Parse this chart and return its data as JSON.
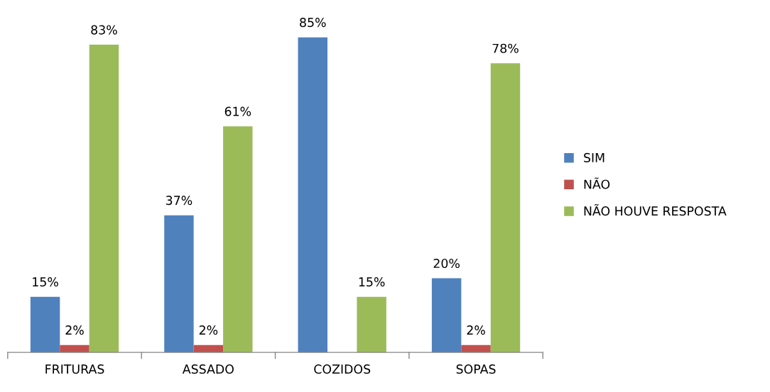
{
  "chart_data": {
    "type": "bar",
    "categories": [
      "FRITURAS",
      "ASSADO",
      "COZIDOS",
      "SOPAS"
    ],
    "series": [
      {
        "name": "SIM",
        "color": "#4f81bd",
        "values": [
          15,
          37,
          85,
          20
        ],
        "value_labels": [
          "15%",
          "37%",
          "85%",
          "20%"
        ]
      },
      {
        "name": "NÃO",
        "color": "#c0504d",
        "values": [
          2,
          2,
          null,
          2
        ],
        "value_labels": [
          "2%",
          "2%",
          null,
          "2%"
        ]
      },
      {
        "name": "NÃO HOUVE RESPOSTA",
        "color": "#9bbb59",
        "values": [
          83,
          61,
          15,
          78
        ],
        "value_labels": [
          "83%",
          "61%",
          "15%",
          "78%"
        ]
      }
    ],
    "tick_labels": "x",
    "grid": false,
    "legend": "right"
  }
}
